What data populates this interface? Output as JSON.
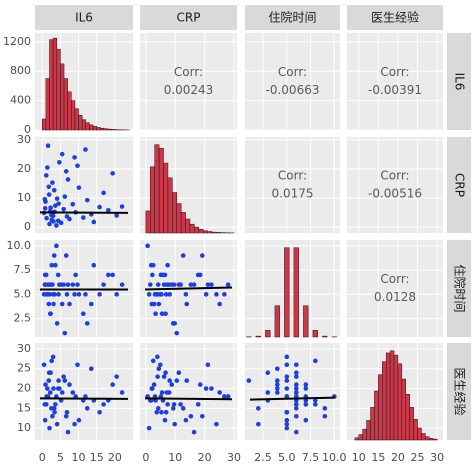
{
  "chart_data": {
    "type": "pairs",
    "corr_label": "Corr:",
    "hist_color": "#c8394a",
    "point_color": "#1f3fd9",
    "line_color": "#000000",
    "grid": true,
    "count_ylim": [
      0,
      1320
    ],
    "count_yticks": [
      0,
      400,
      800,
      1200
    ],
    "variables": [
      {
        "name": "IL6",
        "lim": [
          -2,
          25
        ],
        "ticks": [
          0,
          5,
          10,
          15,
          20
        ],
        "bins": [
          0,
          1,
          2,
          3,
          4,
          5,
          6,
          7,
          8,
          9,
          10,
          11,
          12,
          13,
          14,
          15,
          16,
          17,
          18,
          19,
          20,
          21,
          22,
          23,
          24
        ],
        "counts": [
          150,
          700,
          1230,
          1250,
          1100,
          900,
          700,
          520,
          400,
          290,
          200,
          140,
          100,
          70,
          50,
          35,
          25,
          18,
          12,
          8,
          5,
          3,
          2,
          1
        ],
        "corr": [
          0.00243,
          -0.00663,
          -0.00391
        ]
      },
      {
        "name": "CRP",
        "lim": [
          -2,
          31
        ],
        "ticks": [
          0,
          10,
          20,
          30
        ],
        "bins": [
          0,
          1.5,
          3,
          4.5,
          6,
          7.5,
          9,
          10.5,
          12,
          13.5,
          15,
          16.5,
          18,
          19.5,
          21,
          22.5,
          24,
          25.5,
          27,
          28.5,
          30
        ],
        "counts": [
          300,
          900,
          1200,
          1150,
          950,
          750,
          550,
          400,
          280,
          190,
          120,
          80,
          50,
          30,
          20,
          12,
          8,
          5,
          3,
          2
        ],
        "corr": [
          0.0175,
          -0.00516
        ],
        "fit": [
          [
            5.1,
            4.9
          ]
        ]
      },
      {
        "name": "住院时间",
        "lim": [
          0.6,
          10.6
        ],
        "ticks": [
          {
            "value": 2.5,
            "label": "2.5"
          },
          {
            "value": 5,
            "label": "5.0"
          },
          {
            "value": 7.5,
            "label": "7.5"
          },
          {
            "value": 10,
            "label": "10.0"
          }
        ],
        "bins": [
          0.75,
          1.25,
          1.75,
          2.25,
          2.75,
          3.25,
          3.75,
          4.25,
          4.75,
          5.25,
          5.75,
          6.25,
          6.75,
          7.25,
          7.75,
          8.25,
          8.75,
          9.25,
          9.75,
          10.25
        ],
        "counts": [
          5,
          0,
          20,
          0,
          150,
          0,
          700,
          0,
          2000,
          0,
          2000,
          0,
          700,
          0,
          150,
          0,
          20,
          0,
          5
        ],
        "corr": [
          0.0128
        ],
        "fit": [
          [
            5.5,
            5.5
          ],
          [
            5.5,
            5.7
          ]
        ]
      },
      {
        "name": "医生经验",
        "lim": [
          7,
          31.5
        ],
        "ticks": [
          10,
          15,
          20,
          25,
          30
        ],
        "bins": [
          9,
          10,
          11,
          12,
          13,
          14,
          15,
          16,
          17,
          18,
          19,
          20,
          21,
          22,
          23,
          24,
          25,
          26,
          27,
          28,
          29,
          30
        ],
        "counts": [
          20,
          50,
          100,
          180,
          300,
          450,
          600,
          720,
          800,
          820,
          780,
          700,
          560,
          420,
          300,
          190,
          110,
          60,
          30,
          15,
          8
        ],
        "fit": [
          [
            17.5,
            17.4
          ],
          [
            17.5,
            17.3
          ],
          [
            17.2,
            17.7
          ]
        ]
      }
    ],
    "rows": [
      [
        1.2,
        3.1,
        5,
        18
      ],
      [
        2.5,
        4.2,
        6,
        15
      ],
      [
        3.1,
        2.0,
        4,
        20
      ],
      [
        0.8,
        6.5,
        7,
        12
      ],
      [
        4.5,
        8.1,
        5,
        22
      ],
      [
        5.2,
        1.5,
        6,
        17
      ],
      [
        2.2,
        5.5,
        3,
        19
      ],
      [
        6.8,
        3.7,
        5,
        14
      ],
      [
        1.9,
        11.2,
        6,
        24
      ],
      [
        3.6,
        7.4,
        8,
        16
      ],
      [
        7.5,
        2.8,
        4,
        21
      ],
      [
        0.5,
        4.9,
        5,
        26
      ],
      [
        2.8,
        15.3,
        6,
        13
      ],
      [
        9.2,
        5.1,
        7,
        18
      ],
      [
        4.1,
        9.8,
        2,
        11
      ],
      [
        1.4,
        20.5,
        5,
        20
      ],
      [
        5.9,
        6.2,
        6,
        23
      ],
      [
        11.3,
        3.3,
        3,
        17
      ],
      [
        3.3,
        12.7,
        9,
        15
      ],
      [
        2.0,
        1.1,
        5,
        10
      ],
      [
        8.4,
        7.9,
        6,
        19
      ],
      [
        13.5,
        4.4,
        4,
        25
      ],
      [
        1.1,
        17.8,
        7,
        16
      ],
      [
        6.2,
        10.5,
        1,
        22
      ],
      [
        3.9,
        0.6,
        10,
        18
      ],
      [
        15.8,
        6.9,
        5,
        14
      ],
      [
        4.7,
        22.3,
        6,
        20
      ],
      [
        2.6,
        2.5,
        8,
        27
      ],
      [
        10.1,
        13.6,
        5,
        12
      ],
      [
        0.9,
        8.8,
        6,
        21
      ],
      [
        18.2,
        5.8,
        7,
        17
      ],
      [
        5.5,
        25.1,
        4,
        19
      ],
      [
        7.1,
        16.4,
        6,
        9
      ],
      [
        3.0,
        3.9,
        5,
        28
      ],
      [
        12.4,
        9.3,
        2,
        15
      ],
      [
        1.6,
        28.0,
        6,
        18
      ],
      [
        20.5,
        4.0,
        5,
        23
      ],
      [
        6.6,
        19.2,
        9,
        13
      ],
      [
        2.3,
        6.7,
        3,
        24
      ],
      [
        16.9,
        11.8,
        6,
        16
      ],
      [
        4.4,
        2.2,
        7,
        20
      ],
      [
        8.9,
        24.0,
        5,
        11
      ],
      [
        22.0,
        7.1,
        6,
        19
      ],
      [
        1.8,
        13.9,
        4,
        22
      ],
      [
        14.2,
        1.8,
        8,
        17
      ],
      [
        9.7,
        21.1,
        6,
        26
      ],
      [
        3.4,
        5.3,
        5,
        14
      ],
      [
        19.4,
        18.5,
        7,
        21
      ],
      [
        0.7,
        9.6,
        6,
        16
      ],
      [
        11.9,
        26.7,
        5,
        18
      ]
    ]
  }
}
